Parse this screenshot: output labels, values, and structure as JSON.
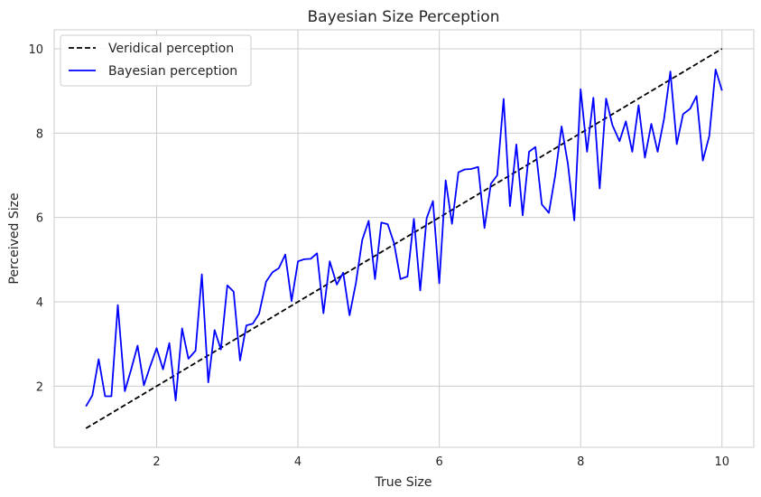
{
  "chart_data": {
    "type": "line",
    "title": "Bayesian Size Perception",
    "xlabel": "True Size",
    "ylabel": "Perceived Size",
    "xlim": [
      0.55,
      10.45
    ],
    "ylim": [
      0.55,
      10.45
    ],
    "xticks": [
      2,
      4,
      6,
      8,
      10
    ],
    "yticks": [
      2,
      4,
      6,
      8,
      10
    ],
    "grid": true,
    "legend_position": "top-left",
    "series": [
      {
        "name": "Veridical perception",
        "color": "#000000",
        "style": "dashed",
        "x": [
          1,
          10
        ],
        "y": [
          1,
          10
        ]
      },
      {
        "name": "Bayesian perception",
        "color": "#0000ff",
        "style": "solid",
        "x": [
          1.0,
          1.09,
          1.18,
          1.27,
          1.36,
          1.45,
          1.55,
          1.64,
          1.73,
          1.82,
          1.91,
          2.0,
          2.09,
          2.18,
          2.27,
          2.36,
          2.45,
          2.55,
          2.64,
          2.73,
          2.82,
          2.91,
          3.0,
          3.09,
          3.18,
          3.27,
          3.36,
          3.45,
          3.55,
          3.64,
          3.73,
          3.82,
          3.91,
          4.0,
          4.09,
          4.18,
          4.27,
          4.36,
          4.45,
          4.55,
          4.64,
          4.73,
          4.82,
          4.91,
          5.0,
          5.09,
          5.18,
          5.27,
          5.36,
          5.45,
          5.55,
          5.64,
          5.73,
          5.82,
          5.91,
          6.0,
          6.09,
          6.18,
          6.27,
          6.36,
          6.45,
          6.55,
          6.64,
          6.73,
          6.82,
          6.91,
          7.0,
          7.09,
          7.18,
          7.27,
          7.36,
          7.45,
          7.55,
          7.64,
          7.73,
          7.82,
          7.91,
          8.0,
          8.09,
          8.18,
          8.27,
          8.36,
          8.45,
          8.55,
          8.64,
          8.73,
          8.82,
          8.91,
          9.0,
          9.09,
          9.18,
          9.27,
          9.36,
          9.45,
          9.55,
          9.64,
          9.73,
          9.82,
          9.91,
          10.0
        ],
        "y": [
          1.52,
          1.78,
          2.64,
          1.76,
          1.76,
          3.92,
          1.88,
          2.4,
          2.96,
          2.02,
          2.48,
          2.9,
          2.4,
          3.02,
          1.66,
          3.37,
          2.65,
          2.84,
          4.65,
          2.09,
          3.33,
          2.87,
          4.39,
          4.24,
          2.61,
          3.44,
          3.48,
          3.72,
          4.48,
          4.7,
          4.8,
          5.12,
          4.02,
          4.96,
          5.01,
          5.02,
          5.15,
          3.73,
          4.96,
          4.41,
          4.69,
          3.68,
          4.45,
          5.47,
          5.92,
          4.54,
          5.88,
          5.84,
          5.39,
          4.54,
          4.6,
          5.97,
          4.27,
          5.98,
          6.39,
          4.44,
          6.88,
          5.85,
          7.07,
          7.14,
          7.15,
          7.2,
          5.75,
          6.8,
          7.0,
          8.81,
          6.27,
          7.73,
          6.05,
          7.56,
          7.67,
          6.31,
          6.11,
          6.99,
          8.16,
          7.27,
          5.93,
          9.04,
          7.56,
          8.84,
          6.69,
          8.82,
          8.19,
          7.81,
          8.28,
          7.56,
          8.66,
          7.42,
          8.22,
          7.56,
          8.34,
          9.46,
          7.74,
          8.45,
          8.58,
          8.88,
          7.35,
          7.93,
          9.51,
          9.01
        ]
      }
    ]
  }
}
